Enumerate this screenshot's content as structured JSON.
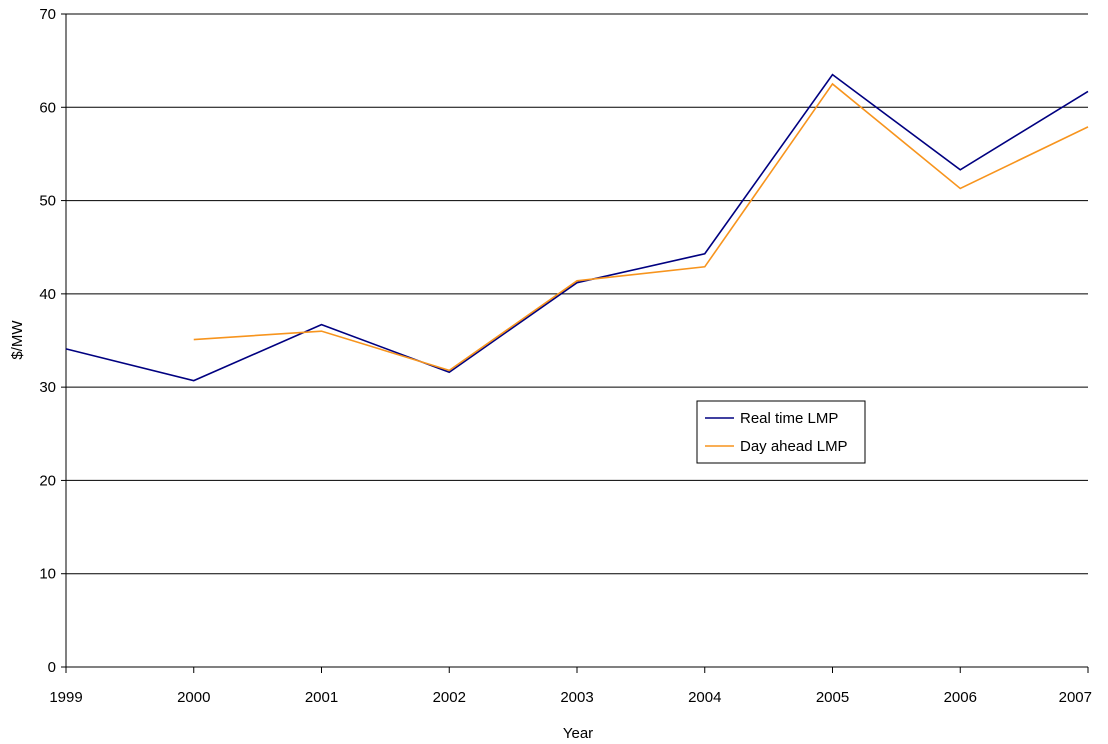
{
  "chart_data": {
    "type": "line",
    "title": "",
    "xlabel": "Year",
    "ylabel": "$/MW",
    "x": [
      "1999",
      "2000",
      "2001",
      "2002",
      "2003",
      "2004",
      "2005",
      "2006",
      "2007"
    ],
    "ylim": [
      0,
      70
    ],
    "yticks": [
      0,
      10,
      20,
      30,
      40,
      50,
      60,
      70
    ],
    "grid": "horizontal",
    "legend_position": "center-right",
    "series": [
      {
        "name": "Real time LMP",
        "color": "#000080",
        "values": [
          34.1,
          30.7,
          36.7,
          31.6,
          41.2,
          44.3,
          63.5,
          53.3,
          61.7
        ]
      },
      {
        "name": "Day ahead LMP",
        "color": "#F7941D",
        "values": [
          null,
          35.1,
          36.0,
          31.8,
          41.4,
          42.9,
          62.5,
          51.3,
          57.9
        ]
      }
    ]
  }
}
